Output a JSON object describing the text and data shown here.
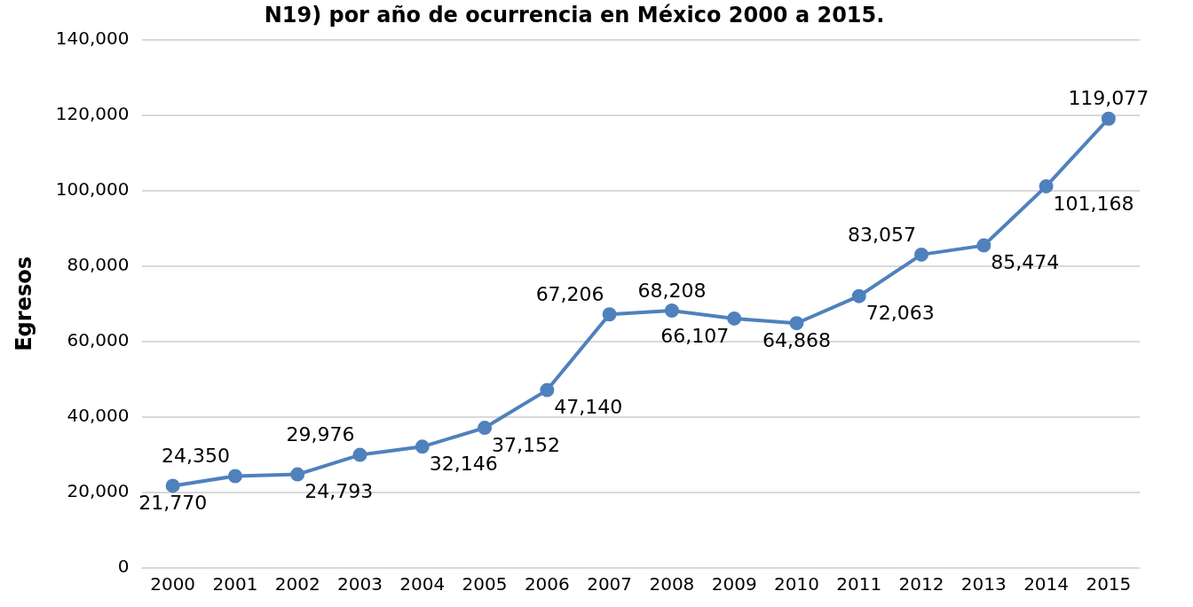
{
  "chart_data": {
    "type": "line",
    "title": "N19) por año de ocurrencia en México 2000 a 2015.",
    "ylabel": "Egresos",
    "categories": [
      "2000",
      "2001",
      "2002",
      "2003",
      "2004",
      "2005",
      "2006",
      "2007",
      "2008",
      "2009",
      "2010",
      "2011",
      "2012",
      "2013",
      "2014",
      "2015"
    ],
    "series": [
      {
        "color": "#4f81bd",
        "values": [
          21770,
          24350,
          24793,
          29976,
          32146,
          37152,
          47140,
          67206,
          68208,
          66107,
          64868,
          72063,
          83057,
          85474,
          101168,
          119077
        ],
        "value_labels": [
          "21,770",
          "24,350",
          "24,793",
          "29,976",
          "32,146",
          "37,152",
          "47,140",
          "67,206",
          "68,208",
          "66,107",
          "64,868",
          "72,063",
          "83,057",
          "85,474",
          "101,168",
          "119,077"
        ]
      }
    ],
    "ylim": [
      0,
      140000
    ],
    "yticks": [
      {
        "value": 0,
        "label": "0"
      },
      {
        "value": 20000,
        "label": "20,000"
      },
      {
        "value": 40000,
        "label": "40,000"
      },
      {
        "value": 60000,
        "label": "60,000"
      },
      {
        "value": 80000,
        "label": "80,000"
      },
      {
        "value": 100000,
        "label": "100,000"
      },
      {
        "value": 120000,
        "label": "120,000"
      },
      {
        "value": 140000,
        "label": "140,000"
      }
    ],
    "grid": "y",
    "marker": "circle",
    "line_style": "solid",
    "legend": false
  }
}
